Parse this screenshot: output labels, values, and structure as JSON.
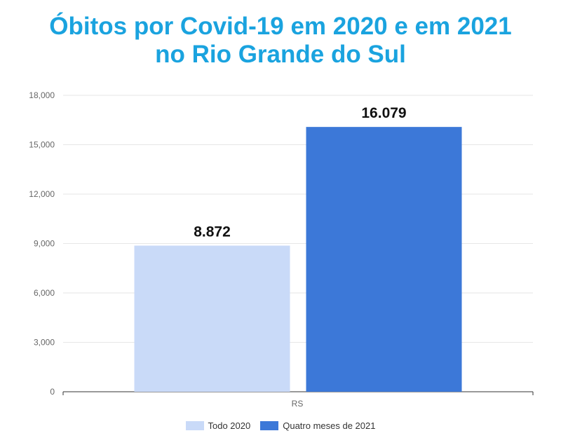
{
  "header": {
    "title_line1": "Óbitos por Covid-19 em 2020 e em 2021",
    "title_line2": "no  Rio Grande do Sul"
  },
  "chart_data": {
    "type": "bar",
    "title": "Óbitos por Covid-19 em 2020 e em 2021 no  Rio Grande do Sul",
    "categories": [
      "RS"
    ],
    "series": [
      {
        "name": "Todo 2020",
        "values": [
          8872
        ],
        "label": "8.872",
        "color": "#c9daf8"
      },
      {
        "name": "Quatro meses de 2021",
        "values": [
          16079
        ],
        "label": "16.079",
        "color": "#3c78d8"
      }
    ],
    "ylim": [
      0,
      18000
    ],
    "yticks": [
      0,
      3000,
      6000,
      9000,
      12000,
      15000,
      18000
    ],
    "ytick_labels": [
      "0",
      "3,000",
      "6,000",
      "9,000",
      "12,000",
      "15,000",
      "18,000"
    ],
    "grid": true,
    "legend": "bottom"
  }
}
